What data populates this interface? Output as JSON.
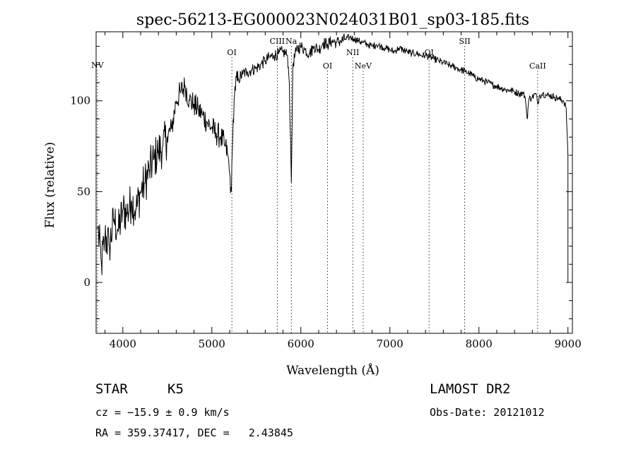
{
  "chart_data": {
    "type": "line",
    "title": "spec-56213-EG000023N024031B01_sp03-185.fits",
    "xlabel": "Wavelength (Å)",
    "ylabel": "Flux (relative)",
    "xlim": [
      3700,
      9050
    ],
    "ylim": [
      -28,
      138
    ],
    "x_ticks": [
      4000,
      5000,
      6000,
      7000,
      8000,
      9000
    ],
    "y_ticks": [
      0,
      50,
      100
    ],
    "grid": false,
    "line_markers": [
      {
        "name": "NV",
        "wavelength": 3715
      },
      {
        "name": "OI",
        "wavelength": 5225
      },
      {
        "name": "CIII",
        "wavelength": 5735
      },
      {
        "name": "Na",
        "wavelength": 5893
      },
      {
        "name": "OI",
        "wavelength": 6300
      },
      {
        "name": "NII",
        "wavelength": 6583
      },
      {
        "name": "NeV",
        "wavelength": 6700
      },
      {
        "name": "OI",
        "wavelength": 7440
      },
      {
        "name": "SII",
        "wavelength": 7840
      },
      {
        "name": "CaII",
        "wavelength": 8660
      }
    ],
    "series": [
      {
        "color": "#000000",
        "x": [
          3720,
          3760,
          3800,
          3850,
          3900,
          3950,
          4000,
          4050,
          4100,
          4150,
          4200,
          4250,
          4300,
          4350,
          4400,
          4450,
          4500,
          4550,
          4600,
          4650,
          4700,
          4750,
          4800,
          4850,
          4900,
          4950,
          5000,
          5050,
          5100,
          5150,
          5180,
          5200,
          5220,
          5240,
          5260,
          5300,
          5350,
          5400,
          5450,
          5500,
          5550,
          5600,
          5650,
          5700,
          5750,
          5800,
          5850,
          5870,
          5893,
          5910,
          5950,
          6000,
          6050,
          6100,
          6150,
          6200,
          6250,
          6300,
          6350,
          6400,
          6450,
          6500,
          6550,
          6600,
          6650,
          6700,
          6750,
          6800,
          6850,
          6900,
          6950,
          7000,
          7050,
          7100,
          7150,
          7200,
          7250,
          7300,
          7350,
          7400,
          7450,
          7500,
          7550,
          7600,
          7650,
          7700,
          7750,
          7800,
          7850,
          7900,
          7950,
          8000,
          8050,
          8100,
          8150,
          8200,
          8250,
          8300,
          8350,
          8400,
          8450,
          8498,
          8520,
          8542,
          8560,
          8600,
          8640,
          8662,
          8680,
          8720,
          8760,
          8800,
          8850,
          8900,
          8950,
          8980,
          9000
        ],
        "y": [
          30,
          10,
          25,
          20,
          35,
          28,
          40,
          38,
          45,
          40,
          50,
          55,
          62,
          68,
          72,
          75,
          80,
          85,
          100,
          105,
          108,
          100,
          98,
          95,
          92,
          88,
          85,
          82,
          80,
          75,
          70,
          60,
          50,
          90,
          108,
          112,
          115,
          116,
          117,
          118,
          120,
          122,
          124,
          125,
          126,
          127,
          125,
          110,
          55,
          120,
          128,
          130,
          128,
          126,
          130,
          128,
          132,
          131,
          133,
          132,
          133,
          134,
          135,
          134,
          133,
          132,
          131,
          130,
          131,
          130,
          129,
          128,
          127,
          129,
          128,
          127,
          126,
          126,
          125,
          125,
          124,
          123,
          122,
          121,
          120,
          119,
          118,
          117,
          116,
          115,
          113,
          112,
          111,
          110,
          109,
          108,
          107,
          106,
          106,
          105,
          104,
          104,
          102,
          90,
          101,
          102,
          104,
          98,
          103,
          104,
          103,
          103,
          102,
          101,
          100,
          96,
          70
        ]
      }
    ]
  },
  "footer": {
    "class_label": "STAR",
    "subclass": "K5",
    "cz": "cz = −15.9 ± 0.9 km/s",
    "radec": "RA = 359.37417, DEC =   2.43845",
    "survey": "LAMOST DR2",
    "obs_date": "Obs-Date: 20121012"
  }
}
